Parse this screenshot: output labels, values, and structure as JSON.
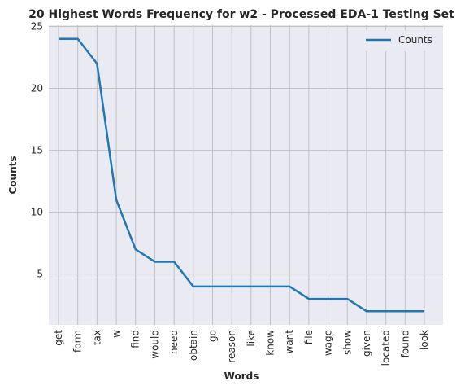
{
  "chart_data": {
    "type": "line",
    "title": "20 Highest Words Frequency for w2 - Processed EDA-1 Testing Set",
    "xlabel": "Words",
    "ylabel": "Counts",
    "categories": [
      "get",
      "form",
      "tax",
      "w",
      "find",
      "would",
      "need",
      "obtain",
      "go",
      "reason",
      "like",
      "know",
      "want",
      "file",
      "wage",
      "show",
      "given",
      "located",
      "found",
      "look"
    ],
    "series": [
      {
        "name": "Counts",
        "values": [
          24,
          24,
          22,
          11,
          7,
          6,
          6,
          4,
          4,
          4,
          4,
          4,
          4,
          3,
          3,
          3,
          2,
          2,
          2,
          2
        ],
        "color": "#1f77b4"
      }
    ],
    "yticks": [
      5,
      10,
      15,
      20,
      25
    ],
    "ylim": [
      0.9,
      25.1
    ],
    "grid": true,
    "legend": "top-right",
    "background": "#eaeaf2",
    "grid_color": "#c0c0c0"
  }
}
